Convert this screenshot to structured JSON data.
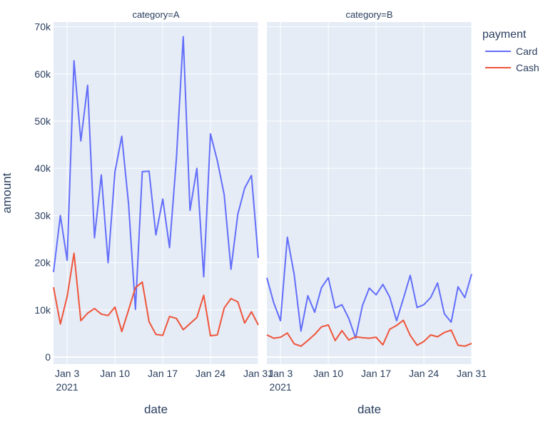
{
  "chart_data": {
    "type": "line",
    "ylabel": "amount",
    "xlabel": "date",
    "legend": {
      "title": "payment",
      "placement": "top-right"
    },
    "colors": {
      "Card": "#636efa",
      "Cash": "#ef553b",
      "plot_bg": "#e5ecf6",
      "grid": "#ffffff",
      "text": "#2a3f5f"
    },
    "ylim": [
      -1500,
      71000
    ],
    "xlim": [
      "2021-01-01",
      "2021-01-31"
    ],
    "y_ticks": [
      0,
      10000,
      20000,
      30000,
      40000,
      50000,
      60000,
      70000
    ],
    "y_tick_labels": [
      "0",
      "10k",
      "20k",
      "30k",
      "40k",
      "50k",
      "60k",
      "70k"
    ],
    "x_tick_dates": [
      "2021-01-03",
      "2021-01-10",
      "2021-01-17",
      "2021-01-24",
      "2021-01-31"
    ],
    "x_tick_labels": [
      "Jan 3",
      "Jan 10",
      "Jan 17",
      "Jan 24",
      "Jan 31"
    ],
    "x_year_label": "2021",
    "x_dates": [
      "2021-01-01",
      "2021-01-02",
      "2021-01-03",
      "2021-01-04",
      "2021-01-05",
      "2021-01-06",
      "2021-01-07",
      "2021-01-08",
      "2021-01-09",
      "2021-01-10",
      "2021-01-11",
      "2021-01-12",
      "2021-01-13",
      "2021-01-14",
      "2021-01-15",
      "2021-01-16",
      "2021-01-17",
      "2021-01-18",
      "2021-01-19",
      "2021-01-20",
      "2021-01-21",
      "2021-01-22",
      "2021-01-23",
      "2021-01-24",
      "2021-01-25",
      "2021-01-26",
      "2021-01-27",
      "2021-01-28",
      "2021-01-29",
      "2021-01-30",
      "2021-01-31"
    ],
    "facets": [
      {
        "title": "category=A",
        "series": [
          {
            "name": "Card",
            "values": [
              18000,
              30000,
              20500,
              62800,
              45800,
              57600,
              25300,
              38600,
              20000,
              39300,
              46800,
              32400,
              10100,
              39300,
              39400,
              25900,
              33500,
              23200,
              42000,
              67900,
              31100,
              40000,
              17000,
              47300,
              41600,
              34400,
              18600,
              30300,
              35800,
              38500,
              21000
            ]
          },
          {
            "name": "Cash",
            "values": [
              14800,
              7000,
              12800,
              22000,
              7700,
              9300,
              10300,
              9100,
              8800,
              10600,
              5400,
              10000,
              14700,
              15900,
              7500,
              4800,
              4600,
              8600,
              8200,
              5800,
              7100,
              8400,
              13100,
              4500,
              4700,
              10400,
              12400,
              11700,
              7200,
              9600,
              6800
            ]
          }
        ]
      },
      {
        "title": "category=B",
        "series": [
          {
            "name": "Card",
            "values": [
              16800,
              11500,
              7700,
              25400,
              17500,
              5500,
              13000,
              9500,
              14700,
              16800,
              10400,
              11100,
              8200,
              4000,
              10900,
              14600,
              13200,
              15400,
              12700,
              7700,
              12400,
              17300,
              10500,
              11100,
              12600,
              15700,
              9200,
              7400,
              14900,
              12600,
              17600
            ]
          },
          {
            "name": "Cash",
            "values": [
              4700,
              4000,
              4200,
              5100,
              2800,
              2300,
              3500,
              4800,
              6400,
              6800,
              3500,
              5600,
              3600,
              4300,
              4100,
              4000,
              4200,
              2600,
              5900,
              6700,
              7800,
              4600,
              2500,
              3300,
              4700,
              4300,
              5200,
              5700,
              2500,
              2300,
              2900
            ]
          }
        ]
      }
    ]
  }
}
